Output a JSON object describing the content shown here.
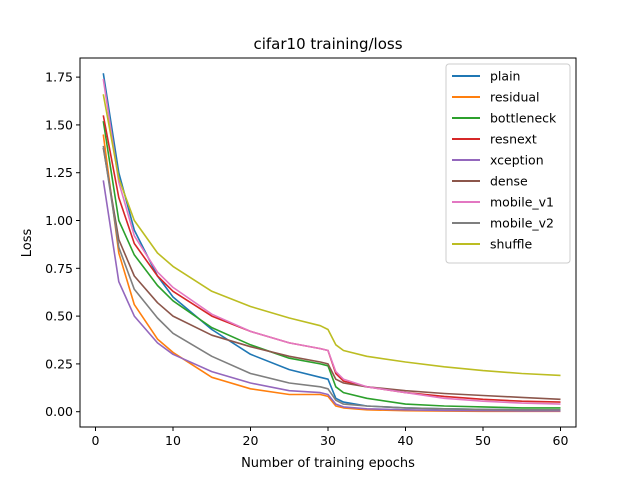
{
  "chart_data": {
    "type": "line",
    "title": "cifar10 training/loss",
    "xlabel": "Number of training epochs",
    "ylabel": "Loss",
    "xlim": [
      -2,
      62
    ],
    "ylim": [
      -0.08,
      1.85
    ],
    "xticks": [
      0,
      10,
      20,
      30,
      40,
      50,
      60
    ],
    "yticks": [
      0.0,
      0.25,
      0.5,
      0.75,
      1.0,
      1.25,
      1.5,
      1.75
    ],
    "ytick_labels": [
      "0.00",
      "0.25",
      "0.50",
      "0.75",
      "1.00",
      "1.25",
      "1.50",
      "1.75"
    ],
    "grid": false,
    "legend_position": "top-right",
    "x": [
      1,
      3,
      5,
      8,
      10,
      15,
      20,
      25,
      29,
      30,
      31,
      32,
      35,
      40,
      45,
      50,
      55,
      60
    ],
    "series": [
      {
        "name": "plain",
        "color": "#1f77b4",
        "values": [
          1.77,
          1.25,
          0.95,
          0.71,
          0.6,
          0.43,
          0.3,
          0.22,
          0.18,
          0.17,
          0.07,
          0.05,
          0.03,
          0.02,
          0.015,
          0.012,
          0.01,
          0.01
        ]
      },
      {
        "name": "residual",
        "color": "#ff7f0e",
        "values": [
          1.45,
          0.83,
          0.56,
          0.38,
          0.31,
          0.18,
          0.12,
          0.09,
          0.09,
          0.08,
          0.03,
          0.02,
          0.01,
          0.005,
          0.003,
          0.002,
          0.002,
          0.002
        ]
      },
      {
        "name": "bottleneck",
        "color": "#2ca02c",
        "values": [
          1.52,
          1.0,
          0.82,
          0.66,
          0.58,
          0.44,
          0.35,
          0.28,
          0.25,
          0.24,
          0.13,
          0.1,
          0.07,
          0.04,
          0.03,
          0.025,
          0.02,
          0.02
        ]
      },
      {
        "name": "resnext",
        "color": "#d62728",
        "values": [
          1.55,
          1.12,
          0.88,
          0.71,
          0.63,
          0.5,
          0.42,
          0.36,
          0.33,
          0.32,
          0.2,
          0.16,
          0.13,
          0.1,
          0.08,
          0.065,
          0.055,
          0.05
        ]
      },
      {
        "name": "xception",
        "color": "#9467bd",
        "values": [
          1.21,
          0.68,
          0.5,
          0.36,
          0.3,
          0.21,
          0.15,
          0.11,
          0.1,
          0.09,
          0.04,
          0.025,
          0.015,
          0.01,
          0.007,
          0.005,
          0.004,
          0.004
        ]
      },
      {
        "name": "dense",
        "color": "#8c564b",
        "values": [
          1.38,
          0.9,
          0.71,
          0.57,
          0.5,
          0.4,
          0.34,
          0.29,
          0.26,
          0.25,
          0.17,
          0.15,
          0.13,
          0.11,
          0.095,
          0.085,
          0.075,
          0.065
        ]
      },
      {
        "name": "mobile_v1",
        "color": "#e377c2",
        "values": [
          1.74,
          1.2,
          0.92,
          0.73,
          0.65,
          0.51,
          0.42,
          0.36,
          0.33,
          0.32,
          0.21,
          0.17,
          0.13,
          0.1,
          0.07,
          0.055,
          0.045,
          0.04
        ]
      },
      {
        "name": "mobile_v2",
        "color": "#7f7f7f",
        "values": [
          1.39,
          0.86,
          0.64,
          0.49,
          0.41,
          0.29,
          0.2,
          0.15,
          0.13,
          0.12,
          0.06,
          0.04,
          0.03,
          0.02,
          0.015,
          0.012,
          0.01,
          0.01
        ]
      },
      {
        "name": "shuffle",
        "color": "#bcbd22",
        "values": [
          1.66,
          1.22,
          1.0,
          0.83,
          0.76,
          0.63,
          0.55,
          0.49,
          0.45,
          0.43,
          0.35,
          0.32,
          0.29,
          0.26,
          0.235,
          0.215,
          0.2,
          0.19
        ]
      }
    ]
  }
}
